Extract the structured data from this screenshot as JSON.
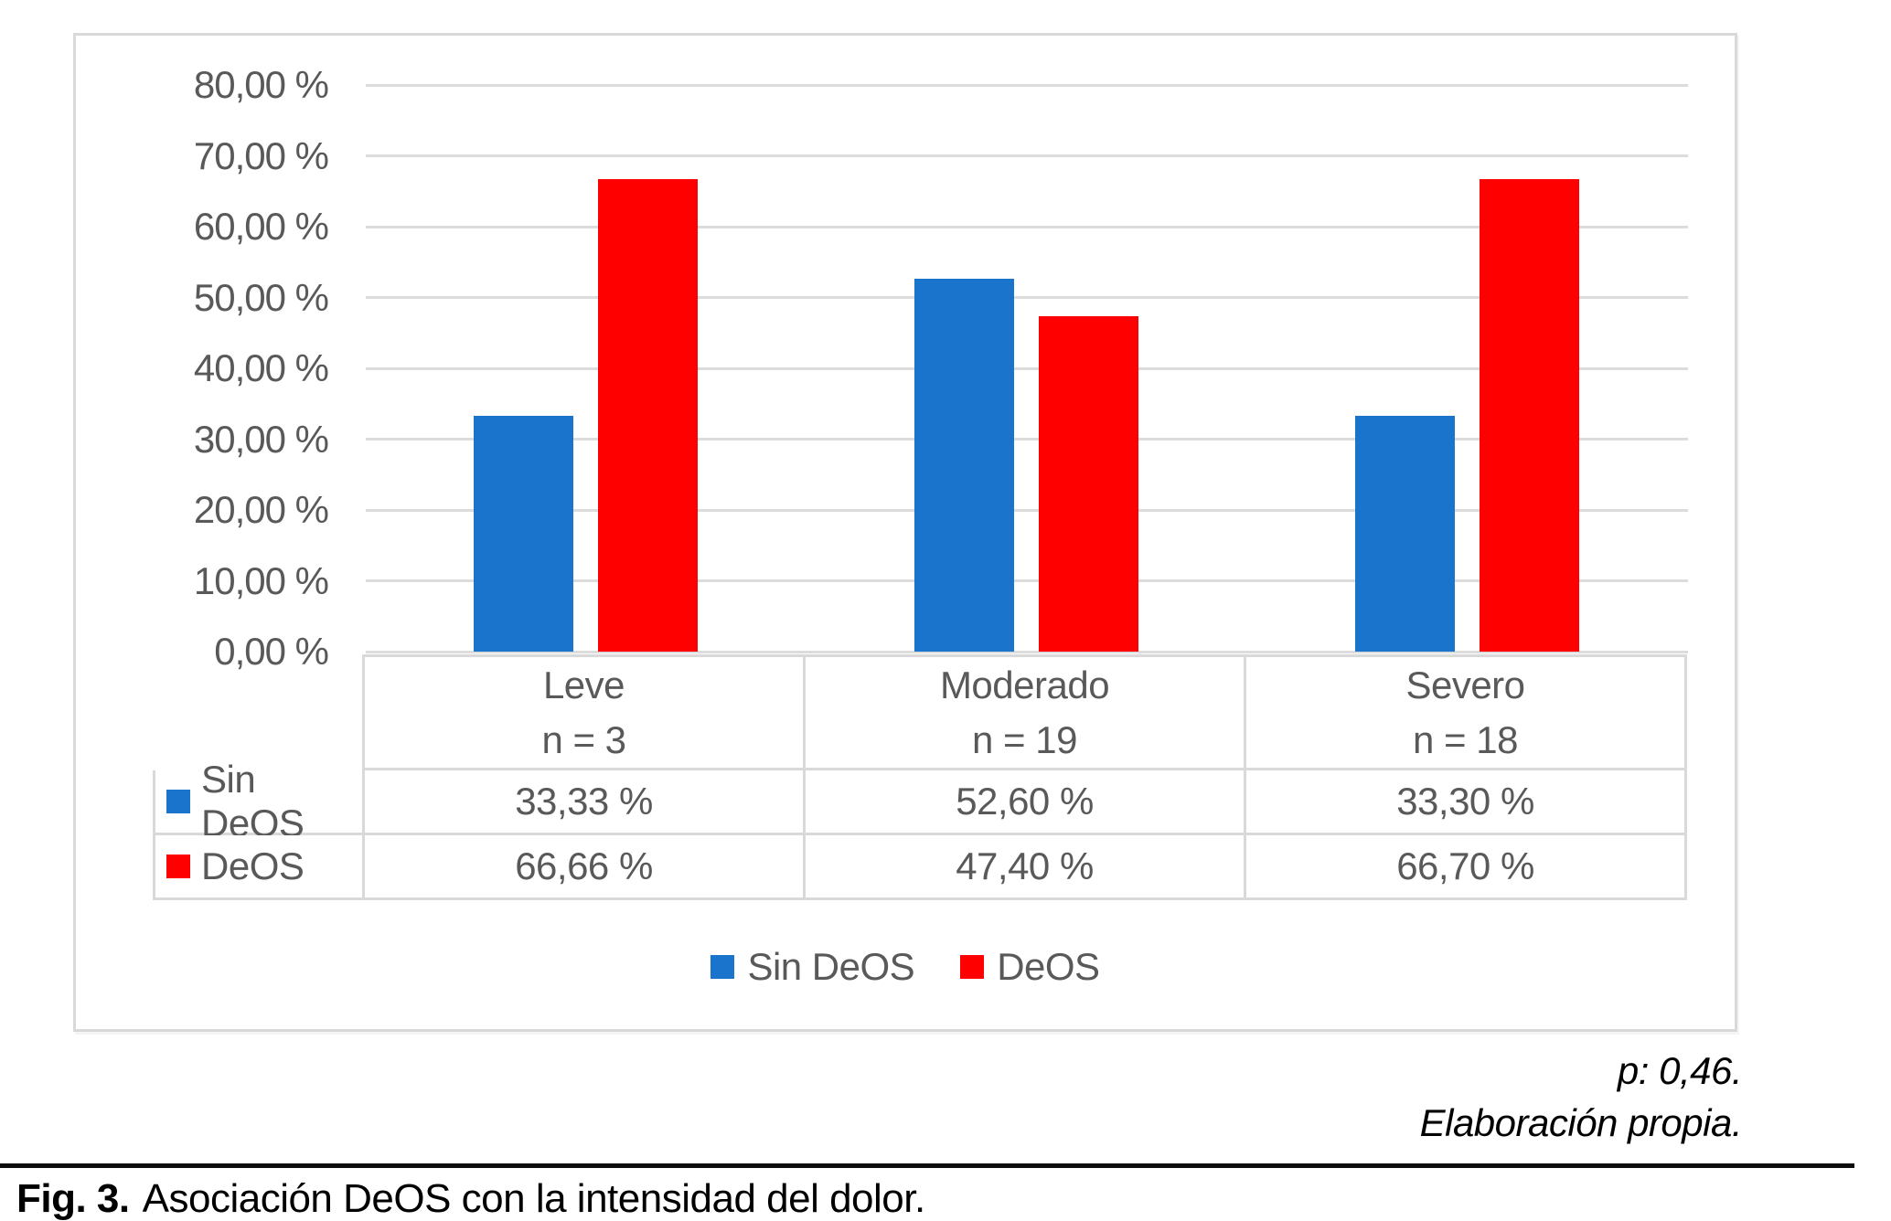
{
  "colors": {
    "sin_deos_blue": "#1B74CB",
    "deos_red": "#FF0000",
    "grid_gray": "#DCDCDC",
    "border_gray": "#D9D9D9",
    "text_gray": "#595959"
  },
  "chart_data": {
    "type": "bar",
    "title": "",
    "categories": [
      "Leve",
      "Moderado",
      "Severo"
    ],
    "category_sublabels": [
      "n = 3",
      "n = 19",
      "n = 18"
    ],
    "series": [
      {
        "name": "Sin DeOS",
        "color": "#1B74CB",
        "values": [
          33.33,
          52.6,
          33.3
        ],
        "display_values": [
          "33,33 %",
          "52,60 %",
          "33,30 %"
        ]
      },
      {
        "name": "DeOS",
        "color": "#FF0000",
        "values": [
          66.66,
          47.4,
          66.7
        ],
        "display_values": [
          "66,66 %",
          "47,40 %",
          "66,70 %"
        ]
      }
    ],
    "ylim": [
      0,
      80
    ],
    "ytick_step": 10,
    "ytick_labels": [
      "0,00 %",
      "10,00 %",
      "20,00 %",
      "30,00 %",
      "40,00 %",
      "50,00 %",
      "60,00 %",
      "70,00 %",
      "80,00 %"
    ],
    "grid": true,
    "legend_position": "bottom",
    "has_data_table": true
  },
  "figure": {
    "notes": [
      "p: 0,46.",
      "Elaboración propia."
    ],
    "caption_label": "Fig. 3.",
    "caption_text": "Asociación DeOS con la intensidad del dolor."
  }
}
